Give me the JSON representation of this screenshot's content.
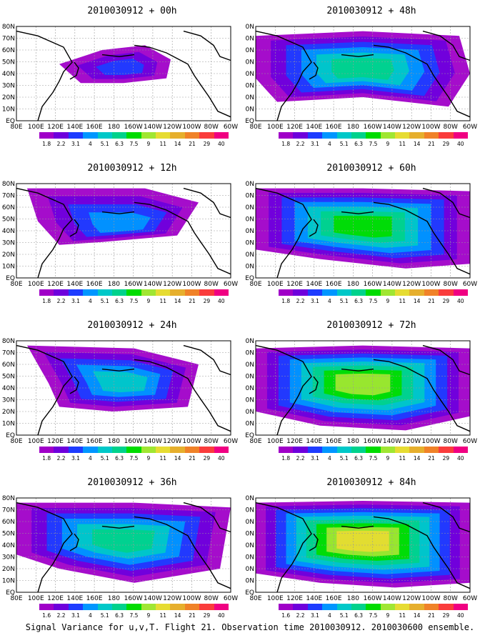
{
  "figure": {
    "caption": "Signal Variance for u,v,T. Flight 21. Observation time 2010030912. 2010030600 ensemble."
  },
  "panels": [
    {
      "title": "2010030912 + 00h",
      "intensity": 0.15
    },
    {
      "title": "2010030912 + 48h",
      "intensity": 0.5
    },
    {
      "title": "2010030912 + 12h",
      "intensity": 0.25
    },
    {
      "title": "2010030912 + 60h",
      "intensity": 0.62
    },
    {
      "title": "2010030912 + 24h",
      "intensity": 0.35
    },
    {
      "title": "2010030912 + 72h",
      "intensity": 0.75
    },
    {
      "title": "2010030912 + 36h",
      "intensity": 0.45
    },
    {
      "title": "2010030912 + 84h",
      "intensity": 0.9
    }
  ],
  "axes": {
    "lon_labels": [
      "80E",
      "100E",
      "120E",
      "140E",
      "160E",
      "180",
      "160W",
      "140W",
      "120W",
      "100W",
      "80W",
      "60W"
    ],
    "lat_labels": [
      "EQ",
      "10N",
      "20N",
      "30N",
      "40N",
      "50N",
      "60N",
      "70N",
      "80N"
    ],
    "lat_labels_clipped": [
      "EQ",
      "0N",
      "0N",
      "0N",
      "0N",
      "0N",
      "0N",
      "0N",
      "0N"
    ]
  },
  "colorbar": {
    "labels": [
      "1.8",
      "2.2",
      "3.1",
      "4",
      "5.1",
      "6.3",
      "7.5",
      "9",
      "11",
      "14",
      "21",
      "29",
      "40"
    ],
    "labels_alt": [
      "1.6",
      "2.2",
      "3.1",
      "4",
      "5.1",
      "6.3",
      "7.5",
      "9",
      "11",
      "14",
      "21",
      "29",
      "40"
    ],
    "colors": [
      "#a000c8",
      "#6e00dc",
      "#1e3cff",
      "#0096ff",
      "#00c8c8",
      "#00d28c",
      "#00dc00",
      "#a0e632",
      "#e6dc32",
      "#e6af2d",
      "#f08228",
      "#fa3c3c",
      "#f00082"
    ]
  },
  "style": {
    "coast_color": "#000000",
    "grid_color": "#9a9a9a",
    "background": "#ffffff"
  }
}
